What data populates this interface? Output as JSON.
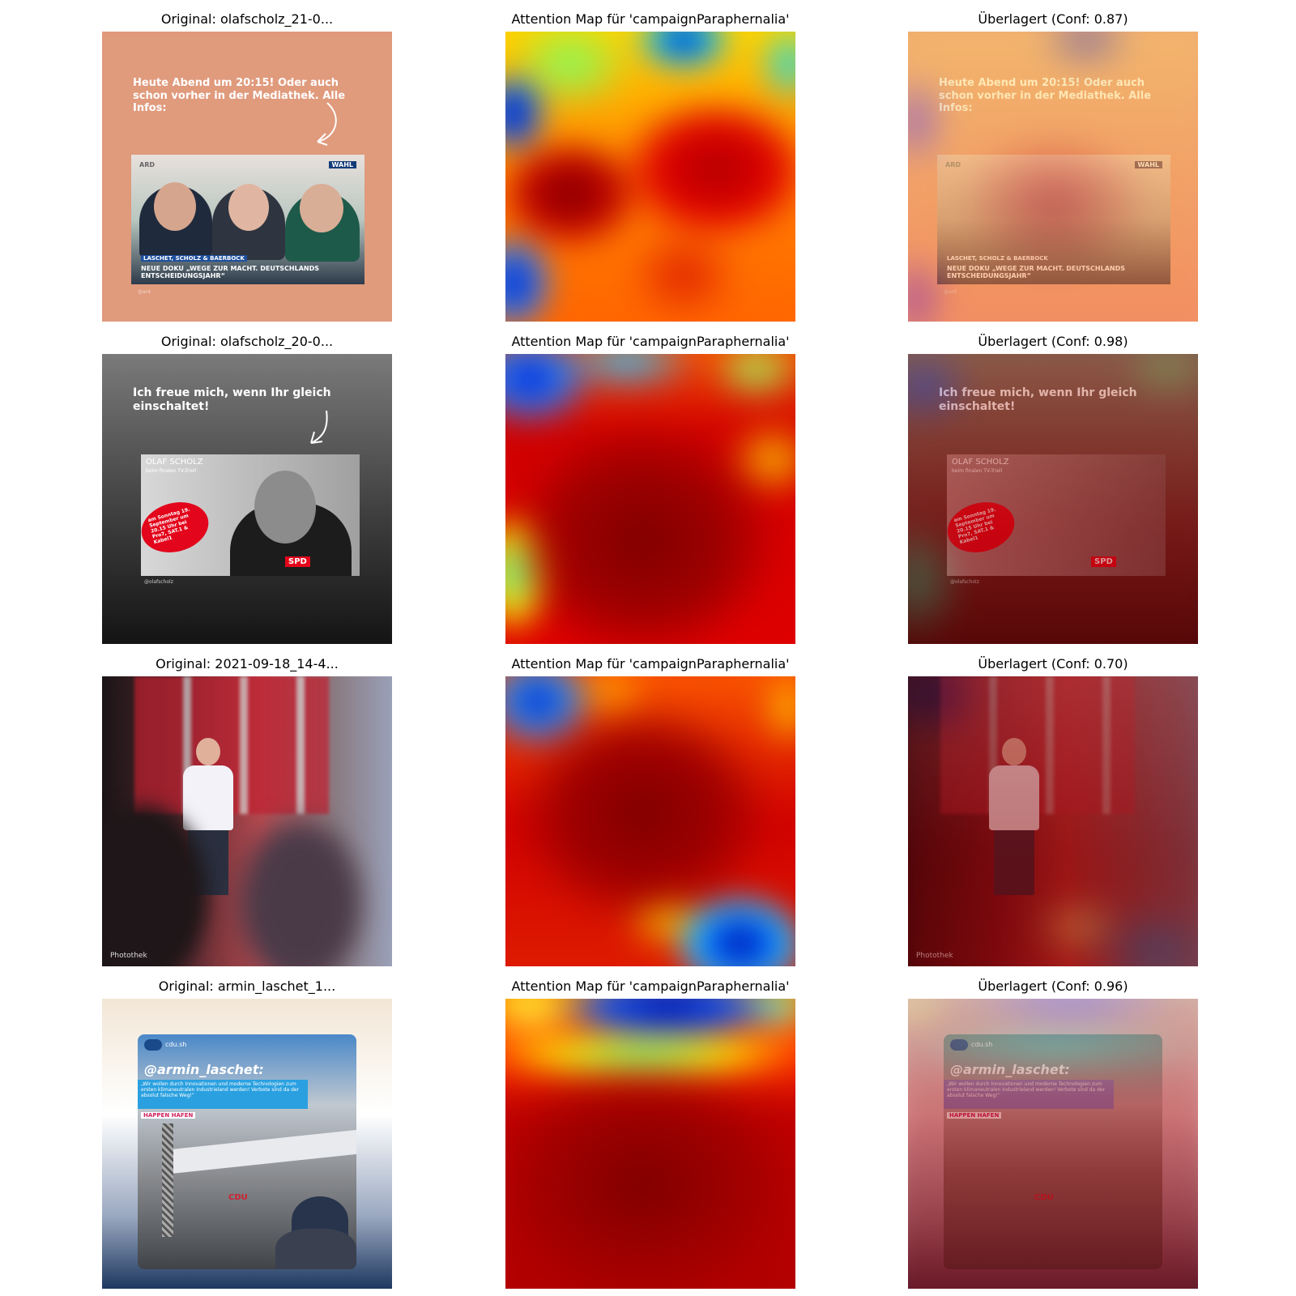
{
  "rows": [
    {
      "original_title": "Original: olafscholz_21-0...",
      "attention_title": "Attention Map für 'campaignParaphernalia'",
      "overlay_title": "Überlagert (Conf: 0.87)",
      "confidence": 0.87,
      "image": {
        "headline": "Heute Abend um 20:15! Oder auch schon vorher in der Mediathek. Alle Infos:",
        "logo_left": "ARD",
        "logo_right": "WAHL",
        "caption_small": "LASCHET, SCHOLZ & BAERBOCK",
        "caption_big": "NEUE DOKU „WEGE ZUR MACHT. DEUTSCHLANDS ENTSCHEIDUNGSJAHR“",
        "handle": "@ard"
      }
    },
    {
      "original_title": "Original: olafscholz_20-0...",
      "attention_title": "Attention Map für 'campaignParaphernalia'",
      "overlay_title": "Überlagert (Conf: 0.98)",
      "confidence": 0.98,
      "image": {
        "headline": "Ich freue mich, wenn Ihr gleich einschaltet!",
        "card_title": "OLAF SCHOLZ",
        "card_subtitle": "beim finalen TV-Triell",
        "badge": "am Sonntag 19. September um 20.15 Uhr bei Pro7, SAT.1 & Kabel1",
        "party": "SPD",
        "handle": "@olafscholz"
      }
    },
    {
      "original_title": "Original: 2021-09-18_14-4...",
      "attention_title": "Attention Map für 'campaignParaphernalia'",
      "overlay_title": "Überlagert (Conf: 0.70)",
      "confidence": 0.7,
      "image": {
        "credit": "Photothek"
      }
    },
    {
      "original_title": "Original: armin_laschet_1...",
      "attention_title": "Attention Map für 'campaignParaphernalia'",
      "overlay_title": "Überlagert (Conf: 0.96)",
      "confidence": 0.96,
      "image": {
        "account": "cdu.sh",
        "handle": "@armin_laschet:",
        "quote": "„Wir wollen durch Innovationen und moderne Technologien zum ersten klimaneutralen Industrieland werden! Verbote sind da der absolut falsche Weg!“",
        "event": "HAPPEN HAFEN",
        "party": "CDU"
      }
    }
  ]
}
